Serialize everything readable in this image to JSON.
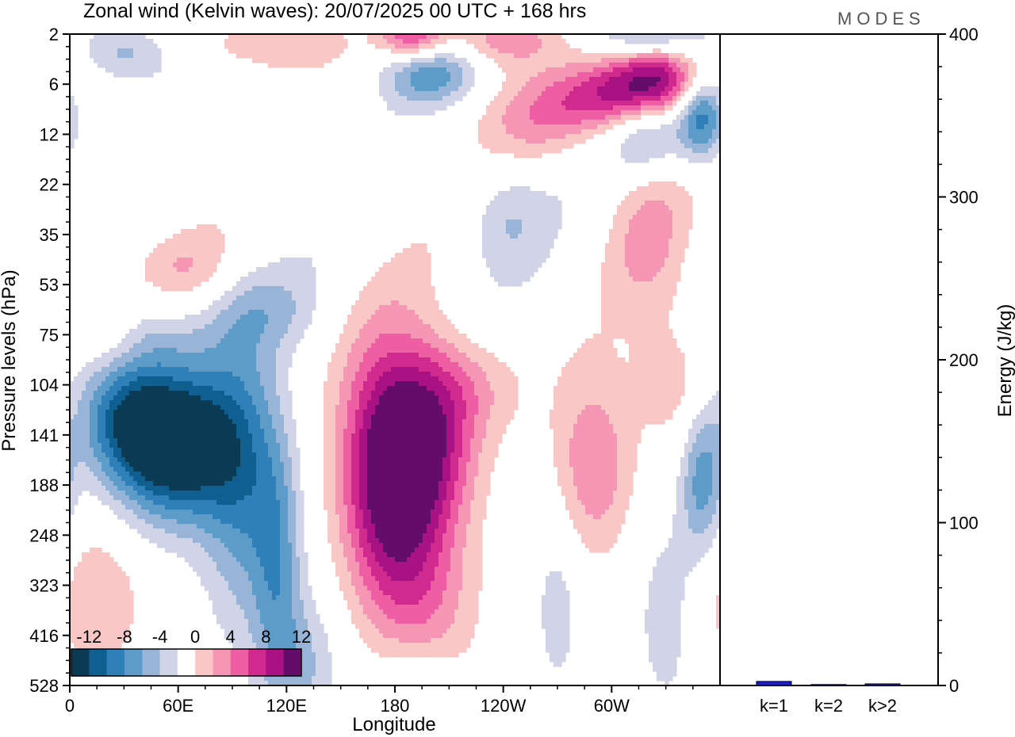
{
  "title": "Zonal wind (Kelvin waves):  20/07/2025  00 UTC  + 168 hrs",
  "brand": "MODES",
  "colors": {
    "neg": [
      "#0b3a55",
      "#0f5f91",
      "#2f7fb8",
      "#5d9cc9",
      "#98b4d6",
      "#d0d4e6"
    ],
    "zero": "#ffffff",
    "pos": [
      "#f9c8c6",
      "#f597b4",
      "#ee5ea2",
      "#d12a8e",
      "#a81282",
      "#640c6a"
    ],
    "bar": "#1b1bd6"
  },
  "chart_data": [
    {
      "type": "heatmap",
      "title": "Zonal wind (Kelvin waves):  20/07/2025  00 UTC  + 168 hrs",
      "xlabel": "Longitude",
      "ylabel": "Pressure levels (hPa)",
      "x_ticks": [
        "0",
        "60E",
        "120E",
        "180",
        "120W",
        "60W"
      ],
      "x_tick_lon": [
        0,
        60,
        120,
        180,
        240,
        300
      ],
      "xlim": [
        0,
        360
      ],
      "y_ticks": [
        "2",
        "6",
        "12",
        "22",
        "35",
        "53",
        "75",
        "104",
        "141",
        "188",
        "248",
        "323",
        "416",
        "528"
      ],
      "colorbar": {
        "labels": [
          "-12",
          "-8",
          "-4",
          "0",
          "4",
          "8",
          "12"
        ],
        "levels": [
          -14,
          -12,
          -10,
          -8,
          -6,
          -4,
          -2,
          2,
          4,
          6,
          8,
          10,
          12,
          14
        ]
      },
      "features": [
        {
          "lon": 60,
          "level": 8.2,
          "dlon": 32,
          "dlev": 1.5,
          "amp": -15
        },
        {
          "lon": 30,
          "level": 7.6,
          "dlon": 28,
          "dlev": 1.3,
          "amp": -9
        },
        {
          "lon": 95,
          "level": 8.8,
          "dlon": 22,
          "dlev": 3.0,
          "amp": -7
        },
        {
          "lon": 115,
          "level": 10.5,
          "dlon": 14,
          "dlev": 2.6,
          "amp": -6
        },
        {
          "lon": 35,
          "level": 6.0,
          "dlon": 45,
          "dlev": 0.7,
          "amp": -3.5
        },
        {
          "lon": 110,
          "level": 5.5,
          "dlon": 30,
          "dlev": 0.8,
          "amp": -3
        },
        {
          "lon": 175,
          "level": 8.4,
          "dlon": 26,
          "dlev": 2.4,
          "amp": 11
        },
        {
          "lon": 200,
          "level": 8.1,
          "dlon": 26,
          "dlev": 1.8,
          "amp": 9
        },
        {
          "lon": 183,
          "level": 10.0,
          "dlon": 28,
          "dlev": 2.0,
          "amp": 5
        },
        {
          "lon": 220,
          "level": 7.0,
          "dlon": 30,
          "dlev": 1.0,
          "amp": 3.5
        },
        {
          "lon": 290,
          "level": 8.6,
          "dlon": 22,
          "dlev": 1.8,
          "amp": 6
        },
        {
          "lon": 335,
          "level": 6.8,
          "dlon": 24,
          "dlev": 1.5,
          "amp": 4
        },
        {
          "lon": 20,
          "level": 6.0,
          "dlon": 20,
          "dlev": 0.7,
          "amp": 5
        },
        {
          "lon": 60,
          "level": 4.6,
          "dlon": 30,
          "dlev": 0.7,
          "amp": 3
        },
        {
          "lon": 350,
          "level": 8.9,
          "dlon": 12,
          "dlev": 1.5,
          "amp": -7
        },
        {
          "lon": 270,
          "level": 11.4,
          "dlon": 14,
          "dlev": 2.0,
          "amp": -3
        },
        {
          "lon": 330,
          "level": 11.6,
          "dlon": 18,
          "dlev": 2.2,
          "amp": -3
        },
        {
          "lon": 15,
          "level": 11.3,
          "dlon": 25,
          "dlev": 1.5,
          "amp": 4
        },
        {
          "lon": 200,
          "level": 11.5,
          "dlon": 30,
          "dlev": 1.6,
          "amp": 3.5
        },
        {
          "lon": 190,
          "level": 12.8,
          "dlon": 20,
          "dlev": 0.7,
          "amp": -2.5
        },
        {
          "lon": 130,
          "level": 12.6,
          "dlon": 20,
          "dlev": 1.4,
          "amp": -4
        },
        {
          "lon": 240,
          "level": 3.6,
          "dlon": 22,
          "dlev": 1.1,
          "amp": -3.5
        },
        {
          "lon": 320,
          "level": 4.0,
          "dlon": 22,
          "dlev": 1.5,
          "amp": 3.5
        },
        {
          "lon": 325,
          "level": 0.9,
          "dlon": 28,
          "dlev": 0.7,
          "amp": 12
        },
        {
          "lon": 295,
          "level": 1.3,
          "dlon": 32,
          "dlev": 0.7,
          "amp": 8
        },
        {
          "lon": 350,
          "level": 1.6,
          "dlon": 14,
          "dlev": 0.9,
          "amp": -11
        },
        {
          "lon": 320,
          "level": 2.0,
          "dlon": 20,
          "dlev": 0.8,
          "amp": -6
        },
        {
          "lon": 200,
          "level": 0.8,
          "dlon": 25,
          "dlev": 0.6,
          "amp": -7
        },
        {
          "lon": 190,
          "level": 0.0,
          "dlon": 18,
          "dlev": 0.5,
          "amp": 9
        },
        {
          "lon": 240,
          "level": 0.1,
          "dlon": 30,
          "dlev": 0.5,
          "amp": 5
        },
        {
          "lon": 320,
          "level": 0.0,
          "dlon": 30,
          "dlev": 0.5,
          "amp": -6
        },
        {
          "lon": 110,
          "level": 0.2,
          "dlon": 40,
          "dlev": 0.5,
          "amp": 4
        },
        {
          "lon": 30,
          "level": 0.4,
          "dlon": 25,
          "dlev": 0.6,
          "amp": -5
        },
        {
          "lon": 260,
          "level": 1.8,
          "dlon": 30,
          "dlev": 0.9,
          "amp": 4
        }
      ]
    },
    {
      "type": "bar",
      "ylabel": "Energy (J/kg)",
      "categories": [
        "k=1",
        "k=2",
        "k>2"
      ],
      "values": [
        2.5,
        0.6,
        1.0
      ],
      "ylim": [
        0,
        400
      ],
      "y_ticks": [
        "0",
        "100",
        "200",
        "300",
        "400"
      ]
    }
  ]
}
